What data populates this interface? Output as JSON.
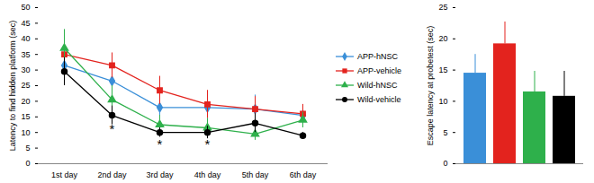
{
  "chart_data": [
    {
      "type": "line",
      "ylabel": "Latency to find hidden platform (sec)",
      "categories": [
        "1st day",
        "2nd day",
        "3rd day",
        "4th day",
        "5th day",
        "6th day"
      ],
      "series": [
        {
          "name": "APP-hNSC",
          "color": "#3a8fd8",
          "marker": "diamond",
          "values": [
            31.5,
            26.5,
            18,
            18,
            17.5,
            15.5
          ],
          "errors": [
            3.5,
            3,
            3,
            3.5,
            4.5,
            2.5
          ]
        },
        {
          "name": "APP-vehicle",
          "color": "#e3231e",
          "marker": "square",
          "values": [
            35,
            31.5,
            23.5,
            19,
            17.5,
            16
          ],
          "errors": [
            4,
            4,
            4.5,
            4.5,
            4,
            3
          ]
        },
        {
          "name": "Wild-hNSC",
          "color": "#2eb04b",
          "marker": "triangle",
          "values": [
            37,
            20.5,
            12.5,
            11.5,
            9.5,
            14
          ],
          "errors": [
            6,
            4.5,
            3,
            3,
            2,
            2.5
          ]
        },
        {
          "name": "Wild-vehicle",
          "color": "#000000",
          "marker": "circle",
          "values": [
            29.5,
            15.5,
            10,
            10,
            13,
            9
          ],
          "errors": [
            4.5,
            3,
            1.5,
            2,
            3,
            1
          ]
        }
      ],
      "annotations": [
        {
          "x": "2nd day",
          "y": 11,
          "text": "*"
        },
        {
          "x": "3rd day",
          "y": 6,
          "text": "*"
        },
        {
          "x": "4th day",
          "y": 6,
          "text": "*"
        }
      ],
      "ylim": [
        0,
        50
      ],
      "yticks": [
        0,
        5,
        10,
        15,
        20,
        25,
        30,
        35,
        40,
        45,
        50
      ],
      "legend": "right"
    },
    {
      "type": "bar",
      "ylabel": "Escape latency at probetest (sec)",
      "categories": [
        null,
        null,
        null,
        null
      ],
      "values": [
        14.5,
        19.2,
        11.5,
        10.8
      ],
      "errors": [
        3,
        3.5,
        3.3,
        4
      ],
      "colors": [
        "#3a8fd8",
        "#e3231e",
        "#2eb04b",
        "#000000"
      ],
      "ylim": [
        0,
        25
      ],
      "yticks": [
        0,
        5,
        10,
        15,
        20,
        25
      ]
    }
  ]
}
